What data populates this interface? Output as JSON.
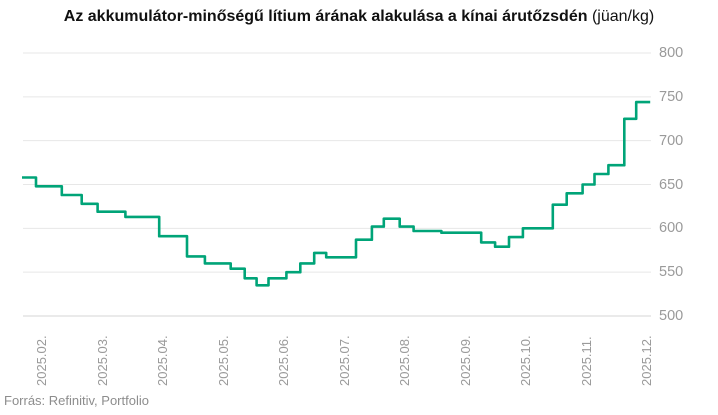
{
  "title": {
    "main": "Az akkumulátor-minőségű lítium árának alakulása a kínai árutőzsdén",
    "unit": " (jüan/kg)"
  },
  "source": "Forrás: Refinitiv, Portfolio",
  "colors": {
    "line": "#00A478",
    "grid": "#E7E7E7",
    "grid_bottom": "#D5D5D5",
    "axis_label": "#9A9A9A",
    "title": "#111111",
    "source": "#8D8D8D",
    "background": "#FFFFFF"
  },
  "chart_data": {
    "type": "line",
    "line_style": "step-after",
    "title": "Az akkumulátor-minőségű lítium árának alakulása a kínai árutőzsdén",
    "unit": "jüan/kg",
    "xlabel": "",
    "ylabel": "",
    "x_labels": [
      "2025.02.",
      "2025.03.",
      "2025.04.",
      "2025.05.",
      "2025.06.",
      "2025.07.",
      "2025.08.",
      "2025.09.",
      "2025.10.",
      "2025.11.",
      "2025.12."
    ],
    "y_ticks": [
      800,
      750,
      700,
      650,
      600,
      550,
      500
    ],
    "ylim": [
      500,
      800
    ],
    "grid": "horizontal-only",
    "legend": "none",
    "series": [
      {
        "name": "Akkumulátor-minőségű lítium ára (jüan/kg)",
        "points": [
          [
            "2025-01-29",
            658
          ],
          [
            "2025-02-05",
            648
          ],
          [
            "2025-02-18",
            638
          ],
          [
            "2025-02-28",
            628
          ],
          [
            "2025-03-08",
            619
          ],
          [
            "2025-03-22",
            613
          ],
          [
            "2025-04-08",
            591
          ],
          [
            "2025-04-22",
            568
          ],
          [
            "2025-05-01",
            560
          ],
          [
            "2025-05-14",
            554
          ],
          [
            "2025-05-21",
            543
          ],
          [
            "2025-05-27",
            535
          ],
          [
            "2025-06-02",
            543
          ],
          [
            "2025-06-11",
            550
          ],
          [
            "2025-06-18",
            560
          ],
          [
            "2025-06-25",
            572
          ],
          [
            "2025-07-01",
            567
          ],
          [
            "2025-07-16",
            587
          ],
          [
            "2025-07-24",
            602
          ],
          [
            "2025-07-30",
            611
          ],
          [
            "2025-08-07",
            602
          ],
          [
            "2025-08-14",
            597
          ],
          [
            "2025-08-28",
            595
          ],
          [
            "2025-09-17",
            584
          ],
          [
            "2025-09-24",
            579
          ],
          [
            "2025-10-01",
            590
          ],
          [
            "2025-10-08",
            600
          ],
          [
            "2025-10-23",
            627
          ],
          [
            "2025-10-30",
            640
          ],
          [
            "2025-11-07",
            650
          ],
          [
            "2025-11-13",
            662
          ],
          [
            "2025-11-20",
            672
          ],
          [
            "2025-11-28",
            725
          ],
          [
            "2025-12-04",
            744
          ]
        ],
        "end_date": "2025-12-11"
      }
    ]
  }
}
